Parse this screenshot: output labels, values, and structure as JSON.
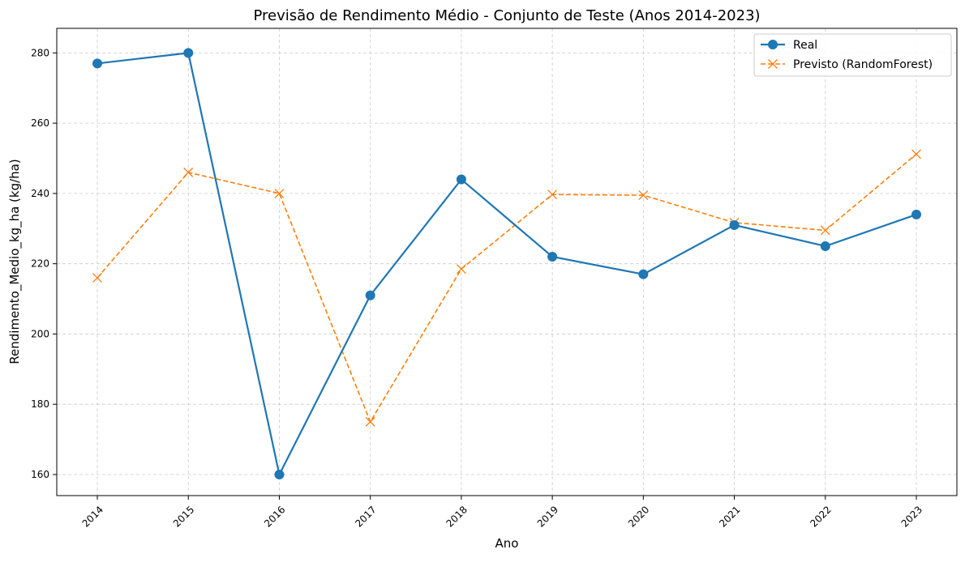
{
  "chart_data": {
    "type": "line",
    "title": "Previsão de Rendimento Médio - Conjunto de Teste (Anos 2014-2023)",
    "xlabel": "Ano",
    "ylabel": "Rendimento_Medio_kg_ha (kg/ha)",
    "x": [
      "2014",
      "2015",
      "2016",
      "2017",
      "2018",
      "2019",
      "2020",
      "2021",
      "2022",
      "2023"
    ],
    "ylim": [
      154,
      287
    ],
    "yticks": [
      160,
      180,
      200,
      220,
      240,
      260,
      280
    ],
    "grid": true,
    "legend_position": "top-right",
    "series": [
      {
        "name": "Real",
        "color": "#1f77b4",
        "marker": "circle",
        "linestyle": "solid",
        "values": [
          277,
          280,
          160,
          211,
          244,
          222,
          217,
          231,
          225,
          234
        ]
      },
      {
        "name": "Previsto (RandomForest)",
        "color": "#ff7f0e",
        "marker": "x",
        "linestyle": "dashed",
        "values": [
          216,
          246,
          240,
          175,
          218.5,
          239.7,
          239.5,
          231.7,
          229.5,
          251.2
        ]
      }
    ]
  }
}
